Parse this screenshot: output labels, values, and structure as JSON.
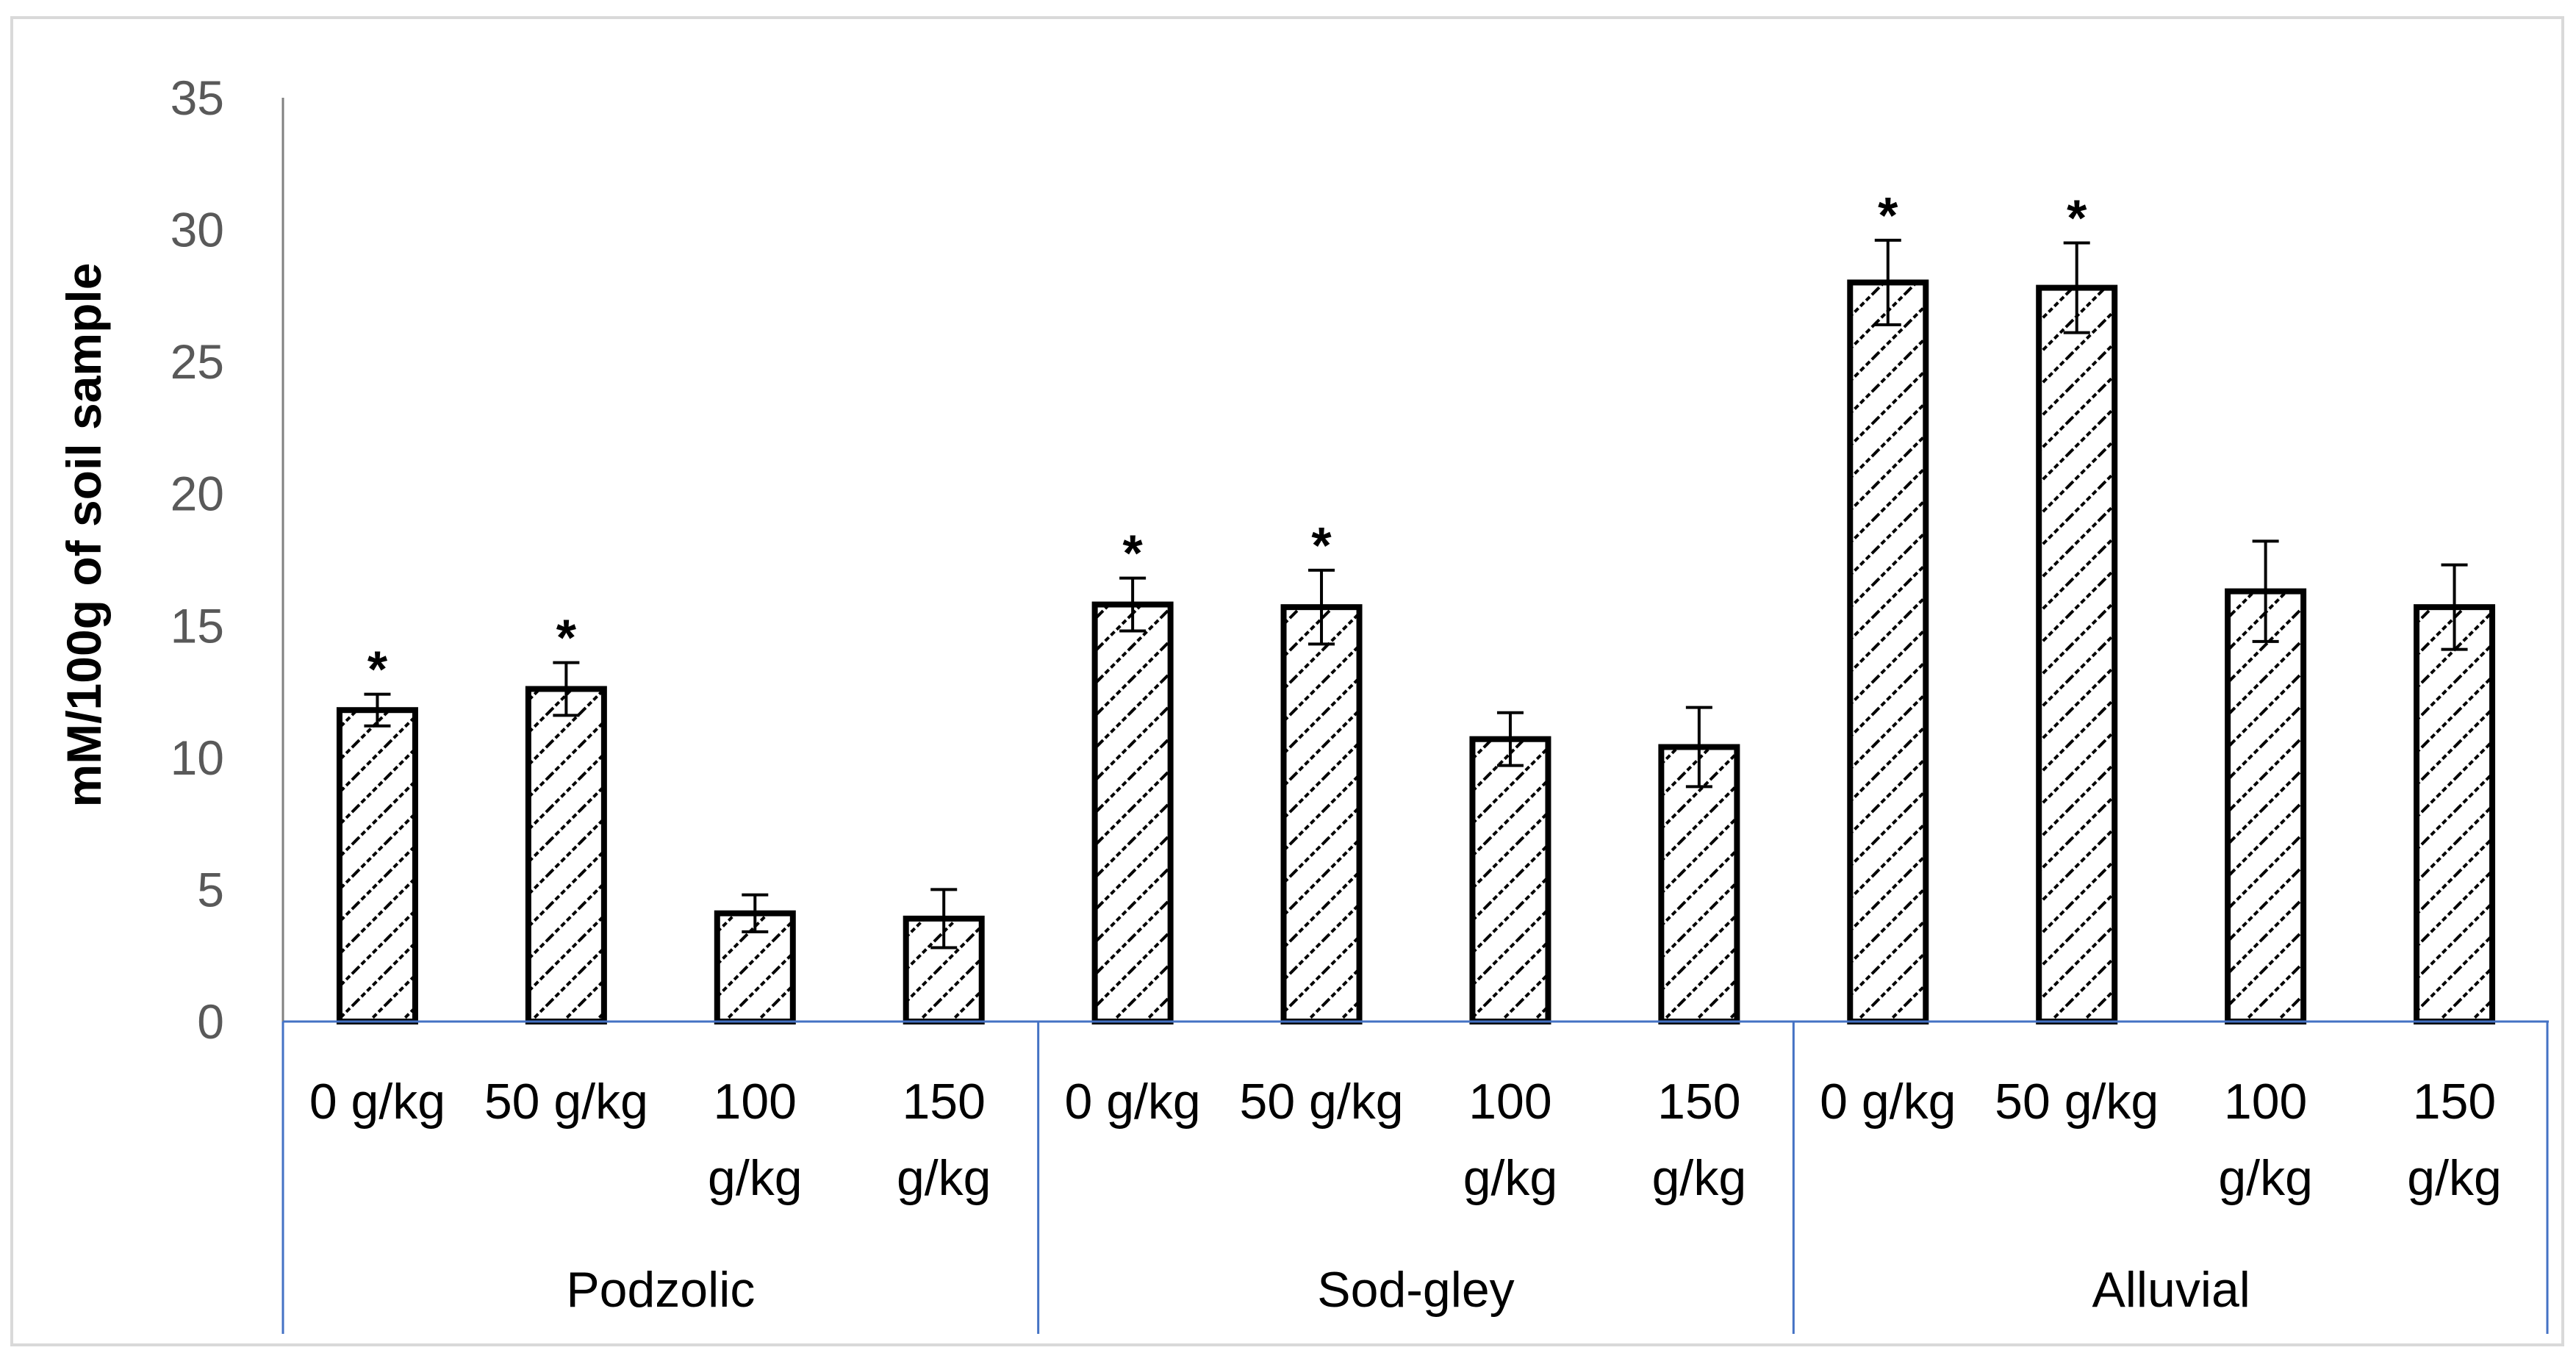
{
  "chart_data": {
    "type": "bar",
    "title": "",
    "xlabel": "",
    "ylabel": "mM/100g of soil sample",
    "ylim": [
      0,
      35
    ],
    "y_ticks": [
      "0",
      "5",
      "10",
      "15",
      "20",
      "25",
      "30",
      "35"
    ],
    "grid": false,
    "legend": "none",
    "bar_pattern": "diagonal-hatch",
    "colors": {
      "bar_outline": "#000000",
      "bar_hatch": "#000000",
      "axis_baseline": "#4472c4",
      "separator": "#4472c4",
      "y_axis": "#808080",
      "tick_text": "#595959",
      "frame": "#d9d9d9"
    },
    "groups": [
      {
        "name": "Podzolic",
        "bars": [
          {
            "label_lines": [
              "0 g/kg"
            ],
            "value": 11.8,
            "error": 0.6,
            "significant": true
          },
          {
            "label_lines": [
              "50 g/kg"
            ],
            "value": 12.6,
            "error": 1.0,
            "significant": true
          },
          {
            "label_lines": [
              "100",
              "g/kg"
            ],
            "value": 4.1,
            "error": 0.7,
            "significant": false
          },
          {
            "label_lines": [
              "150",
              "g/kg"
            ],
            "value": 3.9,
            "error": 1.1,
            "significant": false
          }
        ]
      },
      {
        "name": "Sod-gley",
        "bars": [
          {
            "label_lines": [
              "0 g/kg"
            ],
            "value": 15.8,
            "error": 1.0,
            "significant": true
          },
          {
            "label_lines": [
              "50 g/kg"
            ],
            "value": 15.7,
            "error": 1.4,
            "significant": true
          },
          {
            "label_lines": [
              "100",
              "g/kg"
            ],
            "value": 10.7,
            "error": 1.0,
            "significant": false
          },
          {
            "label_lines": [
              "150",
              "g/kg"
            ],
            "value": 10.4,
            "error": 1.5,
            "significant": false
          }
        ]
      },
      {
        "name": "Alluvial",
        "bars": [
          {
            "label_lines": [
              "0 g/kg"
            ],
            "value": 28.0,
            "error": 1.6,
            "significant": true
          },
          {
            "label_lines": [
              "50 g/kg"
            ],
            "value": 27.8,
            "error": 1.7,
            "significant": true
          },
          {
            "label_lines": [
              "100",
              "g/kg"
            ],
            "value": 16.3,
            "error": 1.9,
            "significant": false
          },
          {
            "label_lines": [
              "150",
              "g/kg"
            ],
            "value": 15.7,
            "error": 1.6,
            "significant": false
          }
        ]
      }
    ],
    "significance_marker": "*"
  }
}
